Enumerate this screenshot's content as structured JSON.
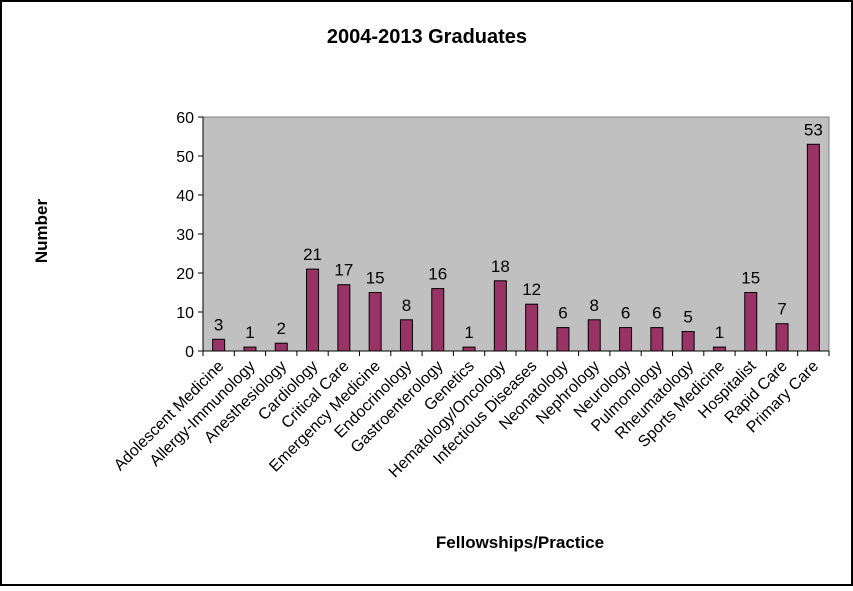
{
  "chart_data": {
    "type": "bar",
    "title": "2004-2013 Graduates",
    "xlabel": "Fellowships/Practice",
    "ylabel": "Number",
    "ylim": [
      0,
      60
    ],
    "yticks": [
      0,
      10,
      20,
      30,
      40,
      50,
      60
    ],
    "grid": false,
    "legend": "none",
    "plot_background": "#c0c0c0",
    "bar_color": "#993366",
    "categories": [
      "Adolescent Medicine",
      "Allergy-Immunology",
      "Anesthesiology",
      "Cardiology",
      "Critical Care",
      "Emergency Medicine",
      "Endocrinology",
      "Gastroenterology",
      "Genetics",
      "Hematology/Oncology",
      "Infectious Diseases",
      "Neonatology",
      "Nephrology",
      "Neurology",
      "Pulmonology",
      "Rheumatology",
      "Sports Medicine",
      "Hospitalist",
      "Rapid Care",
      "Primary Care"
    ],
    "values": [
      3,
      1,
      2,
      21,
      17,
      15,
      8,
      16,
      1,
      18,
      12,
      6,
      8,
      6,
      6,
      5,
      1,
      15,
      7,
      53
    ]
  }
}
